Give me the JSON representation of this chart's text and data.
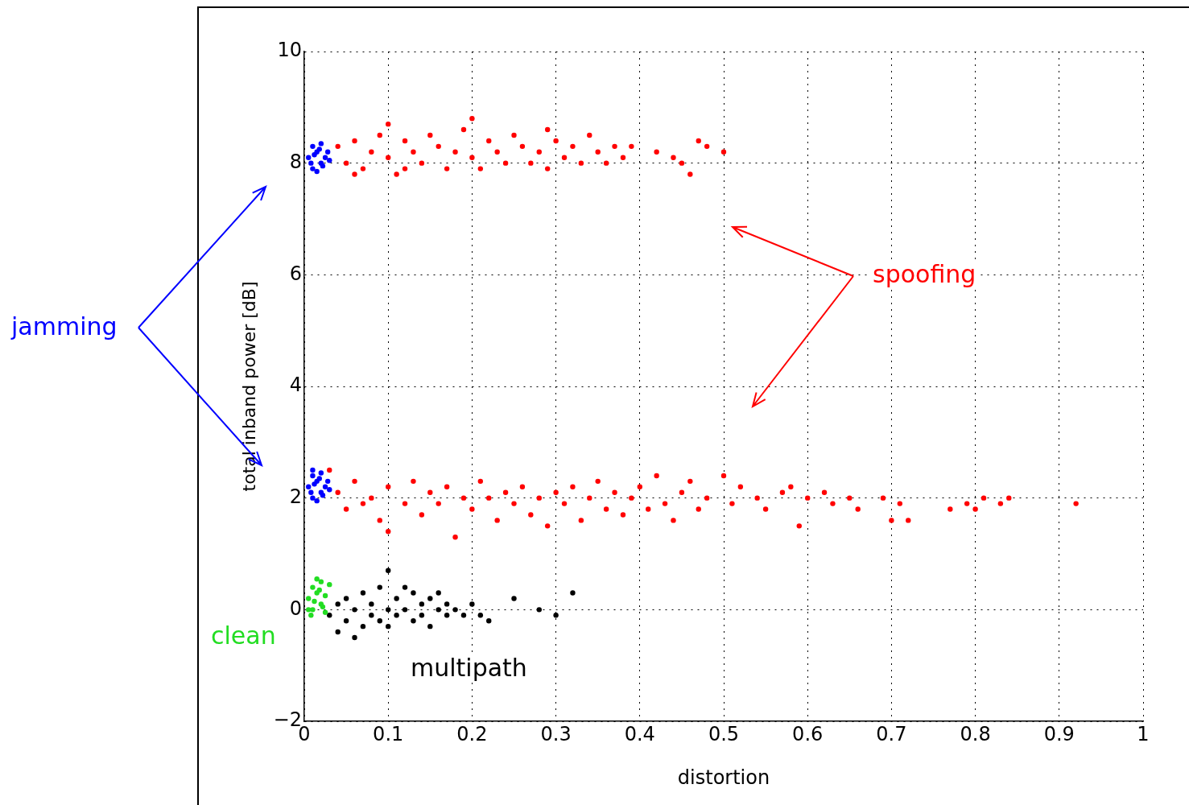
{
  "chart_data": {
    "type": "scatter",
    "xlabel": "distortion",
    "ylabel": "total inband power [dB]",
    "xlim": [
      0,
      1
    ],
    "ylim": [
      -2,
      10
    ],
    "xticks": [
      0,
      0.1,
      0.2,
      0.3,
      0.4,
      0.5,
      0.6,
      0.7,
      0.8,
      0.9,
      1
    ],
    "yticks": [
      {
        "value": -2,
        "label": "−2"
      },
      0,
      2,
      4,
      6,
      8,
      10
    ],
    "grid": true,
    "marker": "circle",
    "annotations": [
      "jamming",
      "spoofing",
      "clean",
      "multipath"
    ],
    "series": [
      {
        "color": "#ff0000",
        "x": [
          0.04,
          0.05,
          0.06,
          0.07,
          0.08,
          0.09,
          0.1,
          0.11,
          0.12,
          0.13,
          0.14,
          0.15,
          0.16,
          0.17,
          0.18,
          0.19,
          0.2,
          0.21,
          0.22,
          0.23,
          0.24,
          0.25,
          0.26,
          0.27,
          0.28,
          0.29,
          0.3,
          0.31,
          0.32,
          0.33,
          0.34,
          0.35,
          0.36,
          0.37,
          0.38,
          0.39,
          0.42,
          0.44,
          0.45,
          0.46,
          0.47,
          0.48,
          0.5,
          0.1,
          0.2,
          0.06,
          0.12,
          0.29
        ],
        "values": [
          8.3,
          8.0,
          8.4,
          7.9,
          8.2,
          8.5,
          8.1,
          7.8,
          8.4,
          8.2,
          8.0,
          8.5,
          8.3,
          7.9,
          8.2,
          8.6,
          8.1,
          7.9,
          8.4,
          8.2,
          8.0,
          8.5,
          8.3,
          8.0,
          8.2,
          7.9,
          8.4,
          8.1,
          8.3,
          8.0,
          8.5,
          8.2,
          8.0,
          8.3,
          8.1,
          8.3,
          8.2,
          8.1,
          8.0,
          7.8,
          8.4,
          8.3,
          8.2,
          8.7,
          8.8,
          7.8,
          7.9,
          8.6
        ]
      },
      {
        "color": "#ff0000",
        "x": [
          0.04,
          0.05,
          0.06,
          0.07,
          0.08,
          0.09,
          0.1,
          0.1,
          0.12,
          0.13,
          0.14,
          0.15,
          0.16,
          0.17,
          0.18,
          0.19,
          0.2,
          0.21,
          0.22,
          0.23,
          0.24,
          0.25,
          0.26,
          0.27,
          0.28,
          0.29,
          0.3,
          0.31,
          0.32,
          0.33,
          0.34,
          0.35,
          0.36,
          0.37,
          0.38,
          0.39,
          0.4,
          0.41,
          0.42,
          0.43,
          0.44,
          0.45,
          0.46,
          0.47,
          0.48,
          0.5,
          0.51,
          0.52,
          0.54,
          0.55,
          0.57,
          0.58,
          0.59,
          0.6,
          0.62,
          0.63,
          0.65,
          0.66,
          0.69,
          0.7,
          0.71,
          0.72,
          0.77,
          0.79,
          0.8,
          0.81,
          0.83,
          0.84,
          0.92,
          0.03
        ],
        "values": [
          2.1,
          1.8,
          2.3,
          1.9,
          2.0,
          1.6,
          2.2,
          1.4,
          1.9,
          2.3,
          1.7,
          2.1,
          1.9,
          2.2,
          1.3,
          2.0,
          1.8,
          2.3,
          2.0,
          1.6,
          2.1,
          1.9,
          2.2,
          1.7,
          2.0,
          1.5,
          2.1,
          1.9,
          2.2,
          1.6,
          2.0,
          2.3,
          1.8,
          2.1,
          1.7,
          2.0,
          2.2,
          1.8,
          2.4,
          1.9,
          1.6,
          2.1,
          2.3,
          1.8,
          2.0,
          2.4,
          1.9,
          2.2,
          2.0,
          1.8,
          2.1,
          2.2,
          1.5,
          2.0,
          2.1,
          1.9,
          2.0,
          1.8,
          2.0,
          1.6,
          1.9,
          1.6,
          1.8,
          1.9,
          1.8,
          2.0,
          1.9,
          2.0,
          1.9,
          2.5
        ]
      },
      {
        "color": "#0000ff",
        "x": [
          0.005,
          0.01,
          0.01,
          0.015,
          0.02,
          0.02,
          0.025,
          0.008,
          0.012,
          0.018,
          0.022,
          0.028,
          0.015,
          0.03
        ],
        "values": [
          8.1,
          8.3,
          7.9,
          8.2,
          8.0,
          8.35,
          8.1,
          8.0,
          8.15,
          8.25,
          7.95,
          8.2,
          7.85,
          8.05
        ]
      },
      {
        "color": "#0000ff",
        "x": [
          0.005,
          0.01,
          0.01,
          0.015,
          0.02,
          0.02,
          0.025,
          0.008,
          0.012,
          0.018,
          0.022,
          0.028,
          0.015,
          0.03,
          0.01
        ],
        "values": [
          2.2,
          2.4,
          2.0,
          2.3,
          2.1,
          2.45,
          2.2,
          2.1,
          2.25,
          2.35,
          2.05,
          2.3,
          1.95,
          2.15,
          2.5
        ]
      },
      {
        "color": "#22dd22",
        "x": [
          0.005,
          0.01,
          0.01,
          0.015,
          0.02,
          0.02,
          0.025,
          0.008,
          0.012,
          0.018,
          0.022,
          0.03,
          0.015,
          0.005,
          0.025
        ],
        "values": [
          0.2,
          0.4,
          0.0,
          0.3,
          0.1,
          0.5,
          0.25,
          -0.1,
          0.15,
          0.35,
          0.05,
          0.45,
          0.55,
          0.0,
          -0.05
        ]
      },
      {
        "color": "#000000",
        "x": [
          0.03,
          0.04,
          0.04,
          0.05,
          0.05,
          0.06,
          0.06,
          0.07,
          0.07,
          0.08,
          0.08,
          0.09,
          0.09,
          0.1,
          0.1,
          0.1,
          0.11,
          0.11,
          0.12,
          0.12,
          0.13,
          0.13,
          0.14,
          0.14,
          0.15,
          0.15,
          0.16,
          0.16,
          0.17,
          0.17,
          0.18,
          0.19,
          0.2,
          0.21,
          0.22,
          0.25,
          0.28,
          0.3,
          0.32
        ],
        "values": [
          -0.1,
          0.1,
          -0.4,
          0.2,
          -0.2,
          0.0,
          -0.5,
          0.3,
          -0.3,
          0.1,
          -0.1,
          0.4,
          -0.2,
          0.0,
          0.7,
          -0.3,
          0.2,
          -0.1,
          0.4,
          0.0,
          -0.2,
          0.3,
          0.1,
          -0.1,
          0.2,
          -0.3,
          0.0,
          0.3,
          0.1,
          -0.1,
          0.0,
          -0.1,
          0.1,
          -0.1,
          -0.2,
          0.2,
          0.0,
          -0.1,
          0.3
        ]
      }
    ]
  }
}
